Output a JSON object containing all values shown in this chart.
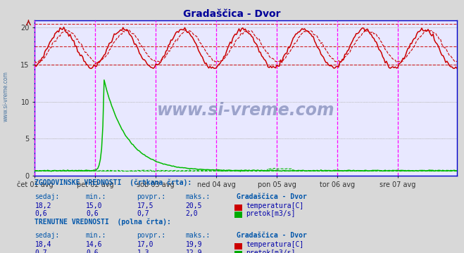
{
  "title": "Gradaščica - Dvor",
  "title_color": "#000099",
  "bg_color": "#d8d8d8",
  "plot_bg_color": "#e8e8ff",
  "grid_color": "#bbbbbb",
  "n_points": 336,
  "x_tick_labels": [
    "čet 01 avg",
    "pet 02 avg",
    "sob 03 avg",
    "ned 04 avg",
    "pon 05 avg",
    "tor 06 avg",
    "sre 07 avg"
  ],
  "x_tick_positions": [
    0,
    48,
    96,
    144,
    192,
    240,
    288
  ],
  "y_major_ticks": [
    0,
    5,
    10,
    15,
    20
  ],
  "y_min": 0,
  "y_max": 21,
  "temp_color": "#cc0000",
  "flow_color": "#00bb00",
  "vline_color": "#ff00ff",
  "hist_min": 15.0,
  "hist_max": 20.5,
  "hist_avg": 17.5,
  "hist_flow_avg": 0.7,
  "axis_color": "#0000cc",
  "watermark": "www.si-vreme.com",
  "text_color": "#0000aa",
  "table_color": "#0055aa"
}
